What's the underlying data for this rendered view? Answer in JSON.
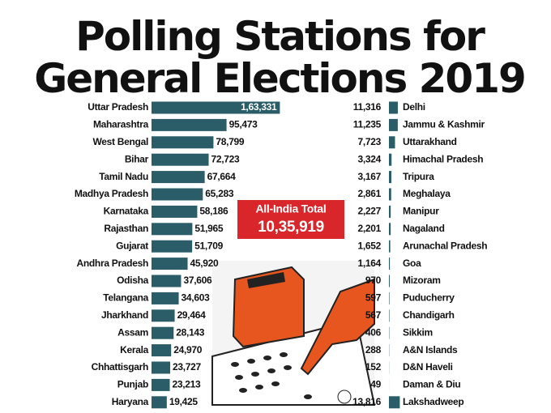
{
  "title": [
    "Polling Stations for",
    "General Elections 2019"
  ],
  "annotation": {
    "label": "All-India Total",
    "total": "10,35,919"
  },
  "chart_data": [
    {
      "type": "bar",
      "orientation": "horizontal",
      "color": "#2b5d68",
      "xlim": [
        0,
        165000
      ],
      "categories": [
        "Uttar Pradesh",
        "Maharashtra",
        "West Bengal",
        "Bihar",
        "Tamil Nadu",
        "Madhya Pradesh",
        "Karnataka",
        "Rajasthan",
        "Gujarat",
        "Andhra Pradesh",
        "Odisha",
        "Telangana",
        "Jharkhand",
        "Assam",
        "Kerala",
        "Chhattisgarh",
        "Punjab",
        "Haryana"
      ],
      "values": [
        163331,
        95473,
        78799,
        72723,
        67664,
        65283,
        58186,
        51965,
        51709,
        45920,
        37606,
        34603,
        29464,
        28143,
        24970,
        23727,
        23213,
        19425
      ],
      "value_labels": [
        "1,63,331",
        "95,473",
        "78,799",
        "72,723",
        "67,664",
        "65,283",
        "58,186",
        "51,965",
        "51,709",
        "45,920",
        "37,606",
        "34,603",
        "29,464",
        "28,143",
        "24,970",
        "23,727",
        "23,213",
        "19,425"
      ]
    },
    {
      "type": "bar",
      "orientation": "horizontal",
      "color": "#2b5d68",
      "xlim": [
        0,
        165000
      ],
      "categories": [
        "Delhi",
        "Jammu & Kashmir",
        "Uttarakhand",
        "Himachal Pradesh",
        "Tripura",
        "Meghalaya",
        "Manipur",
        "Nagaland",
        "Arunachal Pradesh",
        "Goa",
        "Mizoram",
        "Puducherry",
        "Chandigarh",
        "Sikkim",
        "A&N Islands",
        "D&N Haveli",
        "Daman & Diu",
        "Lakshadweep"
      ],
      "values": [
        11316,
        11235,
        7723,
        3324,
        3167,
        2861,
        2227,
        2201,
        1652,
        1164,
        970,
        597,
        567,
        406,
        288,
        152,
        49,
        13816
      ],
      "value_labels": [
        "11,316",
        "11,235",
        "7,723",
        "3,324",
        "3,167",
        "2,861",
        "2,227",
        "2,201",
        "1,652",
        "1,164",
        "970",
        "597",
        "567",
        "406",
        "288",
        "152",
        "49",
        "13,816"
      ]
    }
  ]
}
